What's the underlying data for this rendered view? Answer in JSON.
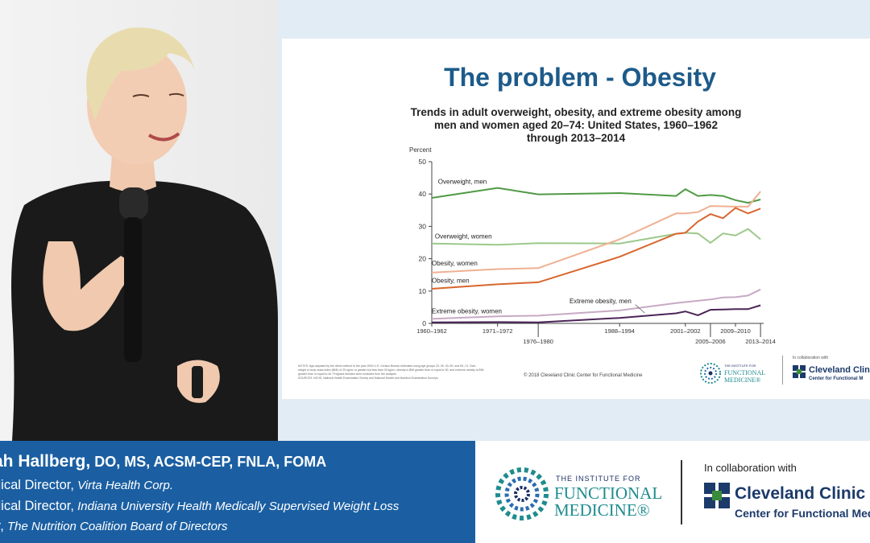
{
  "slide": {
    "title": "The problem - Obesity",
    "chart_title_lines": [
      "Trends in adult overweight, obesity, and extreme obesity among",
      "men and women aged 20–74: United States, 1960–1962",
      "through 2013–2014"
    ],
    "notes_lines": [
      "NOTES: Age-adjusted by the direct method to the year 2000 U.S. Census Bureau estimates using age groups 20–39, 40–59, and 60–74. Over-",
      "weight is body mass index (BMI) of 25 kg/m² or greater but less than 30 kg/m²; obesity is BMI greater than or equal to 30; and extreme obesity is BMI",
      "greater than or equal to 40. Pregnant females were excluded from the analysis.",
      "SOURCES: NCHS, National Health Examination Survey and National Health and Nutrition Examination Surveys."
    ],
    "copyright": "© 2018 Cleveland Clinic Center for Functional Medicine",
    "logo_ifm_lines": [
      "THE INSTITUTE FOR",
      "FUNCTIONAL",
      "MEDICINE®"
    ],
    "collab_text": "In collaboration with",
    "cc_name": "Cleveland Clinic",
    "cc_sub": "Center for Functional M"
  },
  "chart_data": {
    "type": "line",
    "title": "Trends in adult overweight, obesity, and extreme obesity among men and women aged 20–74: United States, 1960–1962 through 2013–2014",
    "ylabel": "Percent",
    "ylim": [
      0,
      50
    ],
    "yticks": [
      0,
      10,
      20,
      30,
      40,
      50
    ],
    "xlim": [
      1961,
      2014
    ],
    "xticks_top": [
      {
        "label": "1960–1962",
        "x": 1961
      },
      {
        "label": "1971–1972",
        "x": 1971.5
      },
      {
        "label": "1988–1994",
        "x": 1991
      },
      {
        "label": "2001–2002",
        "x": 2001.5
      },
      {
        "label": "2009–2010",
        "x": 2009.5
      }
    ],
    "xticks_bottom": [
      {
        "label": "1976–1980",
        "x": 1978
      },
      {
        "label": "2005–2006",
        "x": 2005.5
      },
      {
        "label": "2013–2014",
        "x": 2013.5
      }
    ],
    "series": [
      {
        "name": "Overweight, men",
        "color": "#4f9a44",
        "x": [
          1961,
          1971.5,
          1978,
          1991,
          2000,
          2001.5,
          2003.5,
          2005.5,
          2007.5,
          2009.5,
          2011.5,
          2013.5
        ],
        "y": [
          38.8,
          41.9,
          39.9,
          40.3,
          39.4,
          41.5,
          39.4,
          39.7,
          39.4,
          38.1,
          37.3,
          38.3
        ]
      },
      {
        "name": "Overweight, women",
        "color": "#9bc98b",
        "x": [
          1961,
          1971.5,
          1978,
          1991,
          2000,
          2001.5,
          2003.5,
          2005.5,
          2007.5,
          2009.5,
          2011.5,
          2013.5
        ],
        "y": [
          24.7,
          24.3,
          24.8,
          24.7,
          27.7,
          28.0,
          27.8,
          24.9,
          27.8,
          27.2,
          29.2,
          26.0
        ]
      },
      {
        "name": "Obesity, women",
        "color": "#efb091",
        "x": [
          1961,
          1971.5,
          1978,
          1991,
          2000,
          2001.5,
          2003.5,
          2005.5,
          2007.5,
          2009.5,
          2011.5,
          2013.5
        ],
        "y": [
          15.7,
          16.8,
          17.1,
          26.0,
          34.0,
          34.0,
          34.4,
          36.3,
          36.2,
          36.1,
          36.1,
          40.8
        ]
      },
      {
        "name": "Obesity, men",
        "color": "#d9662e",
        "x": [
          1961,
          1971.5,
          1978,
          1991,
          2000,
          2001.5,
          2003.5,
          2005.5,
          2007.5,
          2009.5,
          2011.5,
          2013.5
        ],
        "y": [
          10.7,
          12.1,
          12.7,
          20.6,
          27.7,
          28.0,
          31.5,
          33.8,
          32.5,
          35.7,
          34.0,
          35.5
        ]
      },
      {
        "name": "Extreme obesity, women",
        "color": "#c7a9c5",
        "x": [
          1961,
          1971.5,
          1978,
          1991,
          2000,
          2001.5,
          2003.5,
          2005.5,
          2007.5,
          2009.5,
          2011.5,
          2013.5
        ],
        "y": [
          1.4,
          2.2,
          2.4,
          4.0,
          6.3,
          6.6,
          7.0,
          7.4,
          8.0,
          8.1,
          8.6,
          10.5
        ]
      },
      {
        "name": "Extreme obesity, men",
        "color": "#4b2457",
        "x": [
          1961,
          1971.5,
          1978,
          1991,
          2000,
          2001.5,
          2003.5,
          2005.5,
          2007.5,
          2009.5,
          2011.5,
          2013.5
        ],
        "y": [
          0.3,
          0.4,
          0.3,
          1.7,
          3.1,
          3.7,
          2.5,
          4.2,
          4.3,
          4.4,
          4.4,
          5.6
        ]
      }
    ],
    "labels": [
      {
        "text": "Overweight, men",
        "x": 1962,
        "y": 43.2
      },
      {
        "text": "Overweight, women",
        "x": 1961.5,
        "y": 26.2
      },
      {
        "text": "Obesity, women",
        "x": 1961,
        "y": 17.9
      },
      {
        "text": "Obesity, men",
        "x": 1961,
        "y": 12.6
      },
      {
        "text": "Extreme obesity, men",
        "x": 1983,
        "y": 6.2
      },
      {
        "text": "Extreme obesity, women",
        "x": 1961,
        "y": 3.1
      }
    ],
    "grid": false
  },
  "lower_third": {
    "name": "ah Hallberg,",
    "credentials": " DO, MS, ACSM-CEP, FNLA, FOMA",
    "rows": [
      {
        "role": "dical Director,",
        "org": " Virta Health Corp."
      },
      {
        "role": "dical Director,",
        "org": " Indiana University Health Medically Supervised Weight Loss"
      },
      {
        "role": "ir,",
        "org": " The Nutrition Coalition Board of Directors"
      }
    ],
    "logo_ifm_lines": [
      "THE INSTITUTE FOR",
      "FUNCTIONAL",
      "MEDICINE®"
    ],
    "collab_text": "In collaboration with",
    "cc_name": "Cleveland Clinic",
    "cc_sub": "Center for Functional Med"
  },
  "colors": {
    "slide_title": "#1d5b8a",
    "namebar_bg": "#1b5fa2",
    "cc_blue": "#1c3a6a",
    "cc_green": "#3a8b3a",
    "ifm_teal": "#1f8c8e",
    "ifm_navy": "#1c2f66"
  },
  "speaker": {
    "icon": "presenter-photo"
  }
}
